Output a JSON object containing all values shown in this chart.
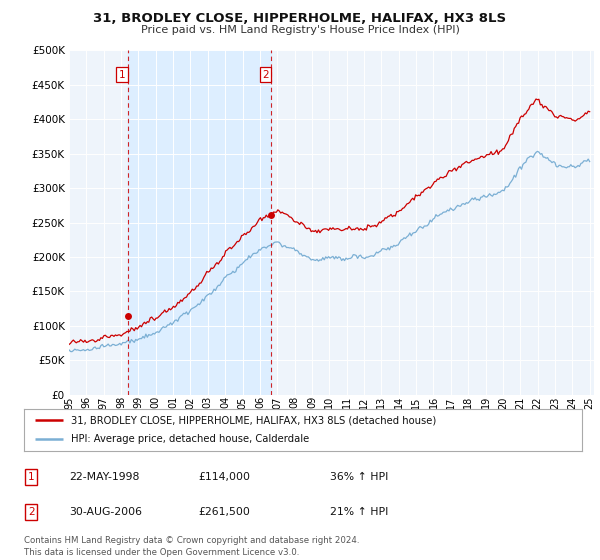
{
  "title": "31, BRODLEY CLOSE, HIPPERHOLME, HALIFAX, HX3 8LS",
  "subtitle": "Price paid vs. HM Land Registry's House Price Index (HPI)",
  "legend_line1": "31, BRODLEY CLOSE, HIPPERHOLME, HALIFAX, HX3 8LS (detached house)",
  "legend_line2": "HPI: Average price, detached house, Calderdale",
  "sale1_date": "22-MAY-1998",
  "sale1_price": "£114,000",
  "sale1_hpi": "36% ↑ HPI",
  "sale2_date": "30-AUG-2006",
  "sale2_price": "£261,500",
  "sale2_hpi": "21% ↑ HPI",
  "footer": "Contains HM Land Registry data © Crown copyright and database right 2024.\nThis data is licensed under the Open Government Licence v3.0.",
  "sale_color": "#cc0000",
  "hpi_color": "#7bafd4",
  "shade_color": "#ddeeff",
  "ylim": [
    0,
    500000
  ],
  "yticks": [
    0,
    50000,
    100000,
    150000,
    200000,
    250000,
    300000,
    350000,
    400000,
    450000,
    500000
  ],
  "sale1_x": 1998.38,
  "sale1_y": 114000,
  "sale2_x": 2006.66,
  "sale2_y": 261500,
  "xmin": 1995.0,
  "xmax": 2025.25,
  "background_color": "#eef4fb"
}
